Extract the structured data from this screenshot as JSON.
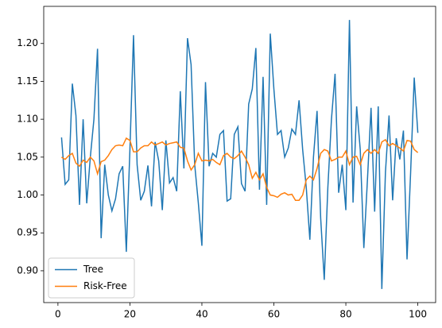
{
  "chart_data": {
    "type": "line",
    "x": [
      1,
      2,
      3,
      4,
      5,
      6,
      7,
      8,
      9,
      10,
      11,
      12,
      13,
      14,
      15,
      16,
      17,
      18,
      19,
      20,
      21,
      22,
      23,
      24,
      25,
      26,
      27,
      28,
      29,
      30,
      31,
      32,
      33,
      34,
      35,
      36,
      37,
      38,
      39,
      40,
      41,
      42,
      43,
      44,
      45,
      46,
      47,
      48,
      49,
      50,
      51,
      52,
      53,
      54,
      55,
      56,
      57,
      58,
      59,
      60,
      61,
      62,
      63,
      64,
      65,
      66,
      67,
      68,
      69,
      70,
      71,
      72,
      73,
      74,
      75,
      76,
      77,
      78,
      79,
      80,
      81,
      82,
      83,
      84,
      85,
      86,
      87,
      88,
      89,
      90,
      91,
      92,
      93,
      94,
      95,
      96,
      97,
      98,
      99,
      100
    ],
    "series": [
      {
        "name": "Tree",
        "color": "#1f77b4",
        "values": [
          1.076,
          1.014,
          1.02,
          1.147,
          1.105,
          0.987,
          1.1,
          0.989,
          1.05,
          1.1,
          1.193,
          0.943,
          1.04,
          1.0,
          0.979,
          0.995,
          1.028,
          1.038,
          0.925,
          1.06,
          1.211,
          1.04,
          0.993,
          1.005,
          1.039,
          0.985,
          1.07,
          1.045,
          0.98,
          1.072,
          1.016,
          1.023,
          1.005,
          1.137,
          1.035,
          1.207,
          1.172,
          1.04,
          0.99,
          0.933,
          1.149,
          1.038,
          1.055,
          1.05,
          1.08,
          1.085,
          0.992,
          0.995,
          1.08,
          1.09,
          1.015,
          1.005,
          1.12,
          1.14,
          1.194,
          1.007,
          1.156,
          0.987,
          1.213,
          1.14,
          1.08,
          1.085,
          1.05,
          1.062,
          1.087,
          1.08,
          1.125,
          1.06,
          1.01,
          0.941,
          1.05,
          1.111,
          0.97,
          0.888,
          1.01,
          1.1,
          1.16,
          1.003,
          1.04,
          0.98,
          1.231,
          0.99,
          1.117,
          1.06,
          0.93,
          1.02,
          1.115,
          0.978,
          1.117,
          0.876,
          1.03,
          1.105,
          0.993,
          1.075,
          1.047,
          1.085,
          0.915,
          1.03,
          1.155,
          1.082
        ]
      },
      {
        "name": "Risk-Free",
        "color": "#ff7f0e",
        "values": [
          1.05,
          1.047,
          1.052,
          1.055,
          1.042,
          1.038,
          1.046,
          1.043,
          1.05,
          1.045,
          1.028,
          1.044,
          1.046,
          1.052,
          1.06,
          1.065,
          1.066,
          1.065,
          1.075,
          1.072,
          1.057,
          1.057,
          1.062,
          1.065,
          1.065,
          1.07,
          1.066,
          1.068,
          1.07,
          1.066,
          1.068,
          1.069,
          1.07,
          1.063,
          1.062,
          1.045,
          1.033,
          1.04,
          1.055,
          1.045,
          1.046,
          1.045,
          1.047,
          1.043,
          1.04,
          1.052,
          1.055,
          1.05,
          1.048,
          1.052,
          1.058,
          1.05,
          1.04,
          1.022,
          1.03,
          1.02,
          1.028,
          1.01,
          1.0,
          0.999,
          0.997,
          1.001,
          1.003,
          1.0,
          1.001,
          0.993,
          0.993,
          1.0,
          1.02,
          1.025,
          1.02,
          1.035,
          1.055,
          1.06,
          1.058,
          1.045,
          1.047,
          1.05,
          1.05,
          1.058,
          1.04,
          1.05,
          1.051,
          1.04,
          1.055,
          1.06,
          1.055,
          1.06,
          1.055,
          1.07,
          1.073,
          1.065,
          1.068,
          1.065,
          1.062,
          1.058,
          1.072,
          1.071,
          1.06,
          1.056
        ]
      }
    ],
    "xlim": [
      -3.95,
      104.95
    ],
    "xticks": [
      0,
      20,
      40,
      60,
      80,
      100
    ],
    "ylim": [
      0.858,
      1.249
    ],
    "yticks": [
      {
        "value": 0.9,
        "label": "0.90"
      },
      0.95,
      {
        "value": 1.0,
        "label": "1.00"
      },
      1.05,
      {
        "value": 1.1,
        "label": "1.10"
      },
      1.15,
      {
        "value": 1.2,
        "label": "1.20"
      }
    ],
    "legend": "lower left"
  }
}
